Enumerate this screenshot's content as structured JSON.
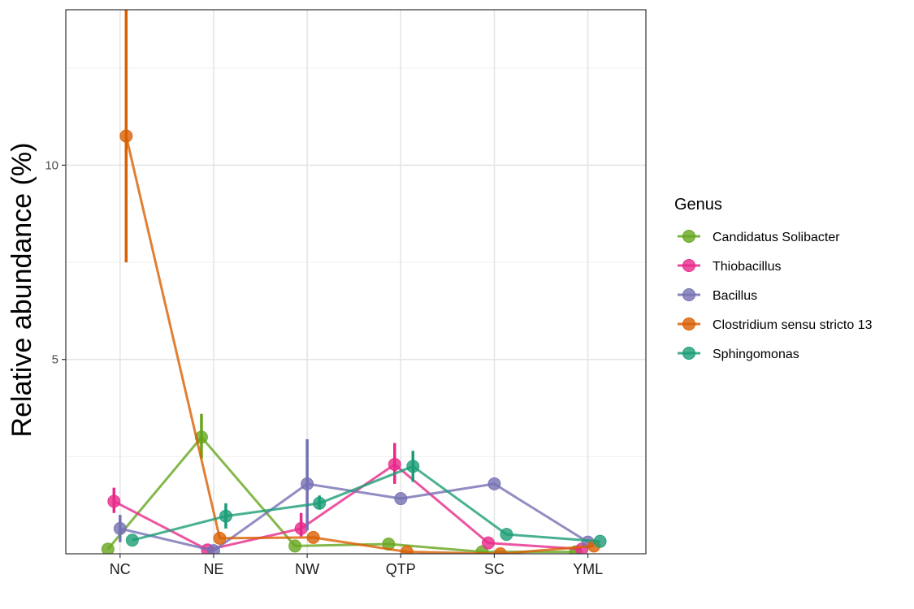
{
  "chart_data": {
    "type": "line",
    "title": "",
    "xlabel": "",
    "ylabel": "Relative abundance (%)",
    "categories": [
      "NC",
      "NE",
      "NW",
      "QTP",
      "SC",
      "YML"
    ],
    "ylim": [
      0,
      14
    ],
    "yticks": [
      5,
      10
    ],
    "grid": true,
    "legend": {
      "title": "Genus",
      "position": "right"
    },
    "series": [
      {
        "name": "Candidatus Solibacter",
        "color": "#66A61E",
        "values": [
          0.12,
          3.0,
          0.2,
          0.25,
          0.05,
          0.05
        ],
        "err_low": [
          0.12,
          2.45,
          0.2,
          0.25,
          0.05,
          0.05
        ],
        "err_high": [
          0.12,
          3.6,
          0.2,
          0.25,
          0.05,
          0.05
        ]
      },
      {
        "name": "Thiobacillus",
        "color": "#E7298A",
        "values": [
          1.35,
          0.1,
          0.65,
          2.3,
          0.28,
          0.12
        ],
        "err_low": [
          1.05,
          0.1,
          0.45,
          1.8,
          0.28,
          0.12
        ],
        "err_high": [
          1.7,
          0.1,
          1.05,
          2.85,
          0.28,
          0.12
        ]
      },
      {
        "name": "Bacillus",
        "color": "#7570B3",
        "values": [
          0.65,
          0.08,
          1.8,
          1.42,
          1.8,
          0.3
        ],
        "err_low": [
          0.3,
          0.08,
          0.6,
          1.42,
          1.8,
          0.3
        ],
        "err_high": [
          1.0,
          0.08,
          2.95,
          1.42,
          1.8,
          0.3
        ]
      },
      {
        "name": "Clostridium sensu stricto 13",
        "color": "#D95F02",
        "values": [
          10.75,
          0.4,
          0.42,
          0.05,
          0.0,
          0.2
        ],
        "err_low": [
          7.5,
          0.4,
          0.42,
          0.05,
          0.0,
          0.2
        ],
        "err_high": [
          14.0,
          0.4,
          0.42,
          0.05,
          0.0,
          0.2
        ]
      },
      {
        "name": "Sphingomonas",
        "color": "#1B9E77",
        "values": [
          0.35,
          0.97,
          1.3,
          2.25,
          0.5,
          0.32
        ],
        "err_low": [
          0.35,
          0.65,
          1.15,
          1.85,
          0.5,
          0.32
        ],
        "err_high": [
          0.35,
          1.3,
          1.5,
          2.65,
          0.5,
          0.32
        ]
      }
    ]
  }
}
